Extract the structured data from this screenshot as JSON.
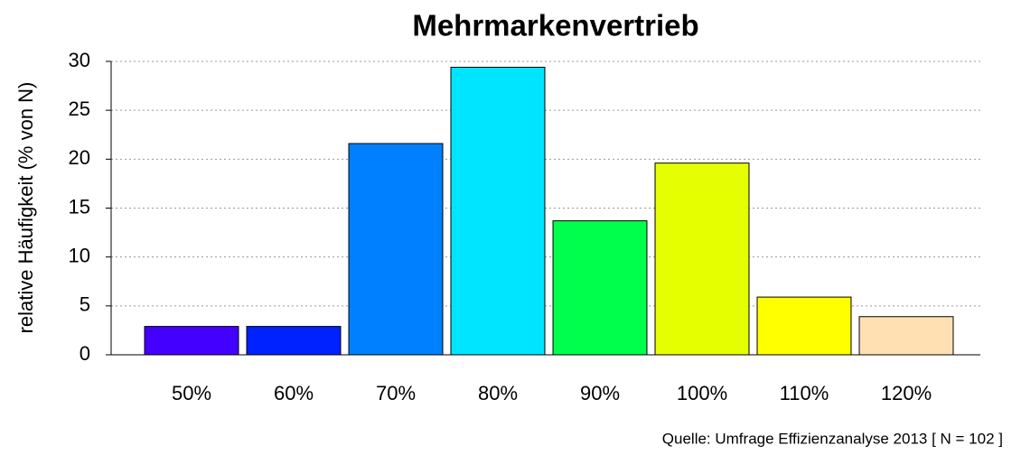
{
  "chart_data": {
    "type": "bar",
    "title": "Mehrmarkenvertrieb",
    "y_label": "relative Häufigkeit (% von N)",
    "source": "Quelle: Umfrage Effizienzanalyse 2013 [ N =  102 ]",
    "categories": [
      "50%",
      "60%",
      "70%",
      "80%",
      "90%",
      "100%",
      "110%",
      "120%"
    ],
    "values": [
      2.9,
      2.9,
      21.6,
      29.4,
      13.7,
      19.6,
      5.9,
      3.9
    ],
    "colors": [
      "#4400ff",
      "#0022ff",
      "#0080ff",
      "#00e5ff",
      "#00ff4d",
      "#e6ff00",
      "#ffff00",
      "#ffe0b3"
    ],
    "ylim": [
      0,
      30
    ],
    "yticks": [
      0,
      5,
      10,
      15,
      20,
      25,
      30
    ],
    "grid": true
  }
}
